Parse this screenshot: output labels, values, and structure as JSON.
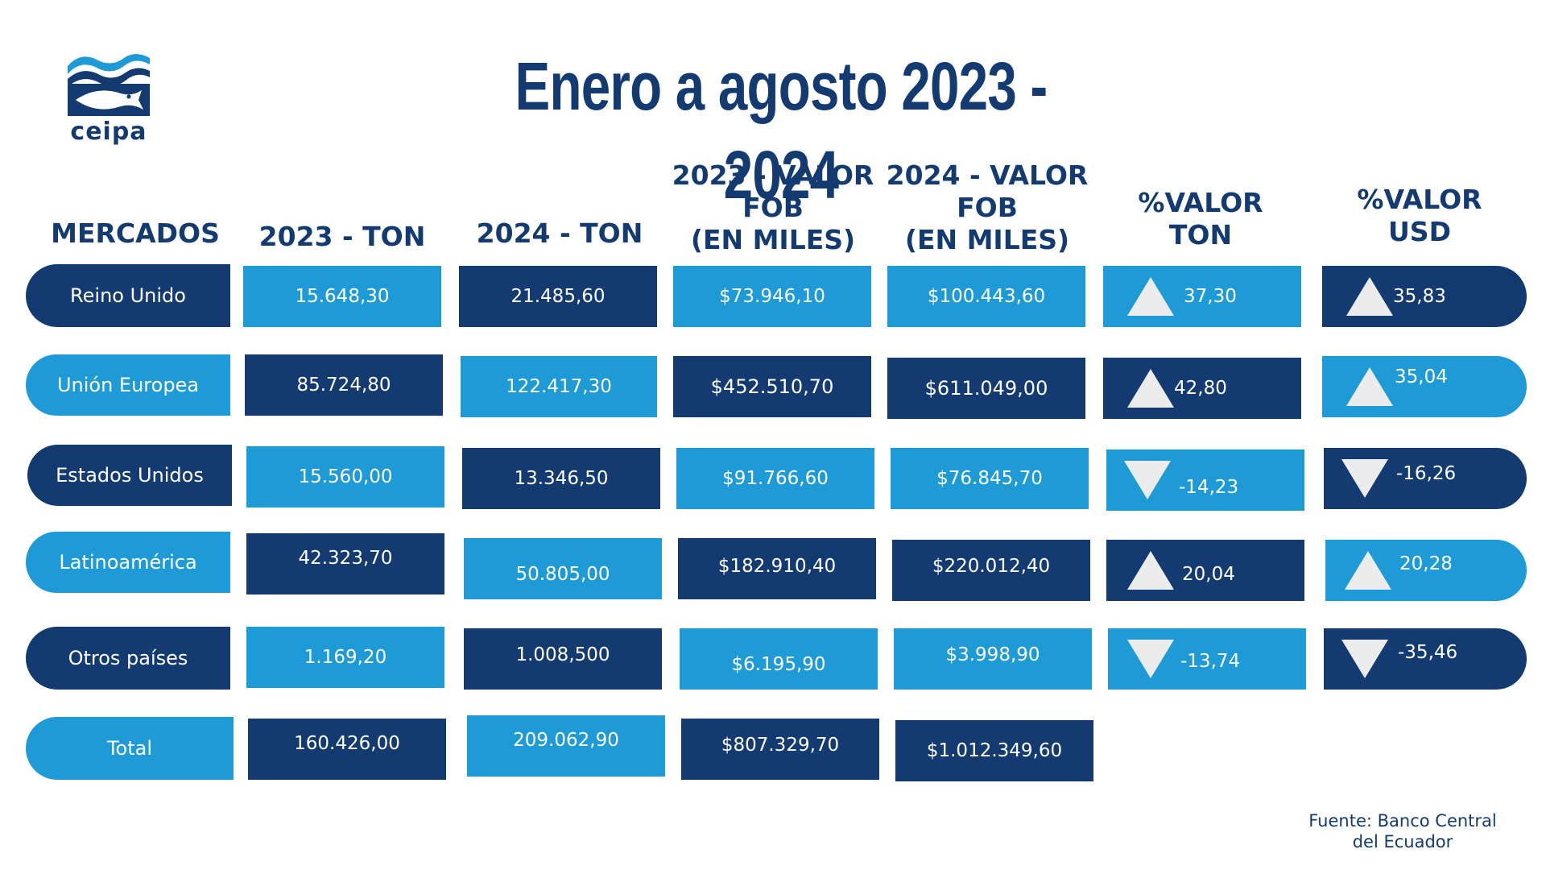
{
  "logo": {
    "text": "ceipa"
  },
  "title": "Enero a agosto 2023 - 2024",
  "headers": {
    "mercados": "MERCADOS",
    "ton2023": "2023 - TON",
    "ton2024": "2024 - TON",
    "fob2023": "2023 - VALOR\nFOB\n(EN MILES)",
    "fob2024": "2024 - VALOR\nFOB\n(EN MILES)",
    "pct_ton": "%VALOR\nTON",
    "pct_usd": "%VALOR\nUSD"
  },
  "rows": [
    {
      "market": "Reino Unido",
      "ton2023": "15.648,30",
      "ton2024": "21.485,60",
      "fob2023": "$73.946,10",
      "fob2024": "$100.443,60",
      "pct_ton": "37,30",
      "pct_ton_dir": "up",
      "pct_usd": "35,83",
      "pct_usd_dir": "up"
    },
    {
      "market": "Unión Europea",
      "ton2023": "85.724,80",
      "ton2024": "122.417,30",
      "fob2023": "$452.510,70",
      "fob2024": "$611.049,00",
      "pct_ton": "42,80",
      "pct_ton_dir": "up",
      "pct_usd": "35,04",
      "pct_usd_dir": "up"
    },
    {
      "market": "Estados Unidos",
      "ton2023": "15.560,00",
      "ton2024": "13.346,50",
      "fob2023": "$91.766,60",
      "fob2024": "$76.845,70",
      "pct_ton": "-14,23",
      "pct_ton_dir": "down",
      "pct_usd": "-16,26",
      "pct_usd_dir": "down"
    },
    {
      "market": "Latinoamérica",
      "ton2023": "42.323,70",
      "ton2024": "50.805,00",
      "fob2023": "$182.910,40",
      "fob2024": "$220.012,40",
      "pct_ton": "20,04",
      "pct_ton_dir": "up",
      "pct_usd": "20,28",
      "pct_usd_dir": "up"
    },
    {
      "market": "Otros países",
      "ton2023": "1.169,20",
      "ton2024": "1.008,500",
      "fob2023": "$6.195,90",
      "fob2024": "$3.998,90",
      "pct_ton": "-13,74",
      "pct_ton_dir": "down",
      "pct_usd": "-35,46",
      "pct_usd_dir": "down"
    }
  ],
  "total": {
    "market": "Total",
    "ton2023": "160.426,00",
    "ton2024": "209.062,90",
    "fob2023": "$807.329,70",
    "fob2024": "$1.012.349,60"
  },
  "colors": {
    "dark": "#133b72",
    "light": "#1e9bd7",
    "arrow": "#ececec"
  },
  "source": "Fuente: Banco Central\ndel Ecuador"
}
